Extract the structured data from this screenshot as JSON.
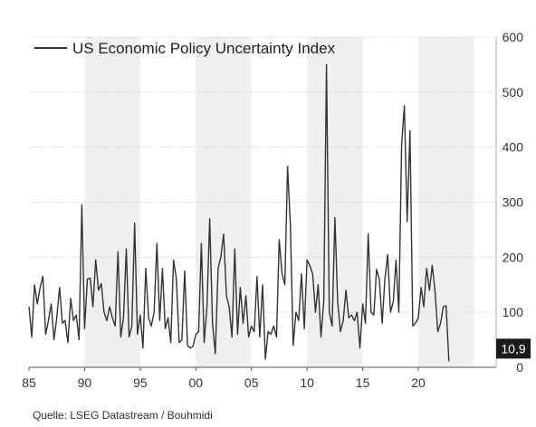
{
  "chart_data": {
    "type": "line",
    "legend": {
      "position": "top-left"
    },
    "series": [
      {
        "name": "US Economic Policy Uncertainty Index",
        "color": "#333333",
        "x_start": 1985.0,
        "x_step": 0.25,
        "values": [
          110,
          55,
          150,
          115,
          145,
          165,
          60,
          85,
          115,
          50,
          90,
          145,
          80,
          85,
          45,
          125,
          85,
          95,
          50,
          295,
          70,
          160,
          162,
          110,
          195,
          140,
          152,
          100,
          85,
          110,
          90,
          75,
          210,
          55,
          90,
          215,
          55,
          75,
          262,
          60,
          95,
          35,
          180,
          90,
          75,
          100,
          225,
          85,
          180,
          70,
          90,
          45,
          195,
          160,
          45,
          50,
          175,
          40,
          35,
          38,
          60,
          65,
          225,
          45,
          110,
          270,
          80,
          25,
          180,
          200,
          242,
          130,
          110,
          55,
          215,
          60,
          145,
          80,
          130,
          55,
          75,
          65,
          165,
          55,
          150,
          15,
          65,
          60,
          75,
          55,
          232,
          170,
          150,
          365,
          260,
          40,
          100,
          85,
          170,
          70,
          195,
          185,
          170,
          100,
          150,
          55,
          120,
          550,
          100,
          75,
          272,
          120,
          65,
          85,
          140,
          90,
          95,
          85,
          100,
          35,
          115,
          80,
          243,
          100,
          95,
          178,
          160,
          80,
          160,
          205,
          100,
          120,
          195,
          100,
          405,
          475,
          265,
          430,
          75,
          80,
          90,
          145,
          110,
          180,
          140,
          185,
          140,
          65,
          80,
          110,
          112,
          10.9
        ]
      }
    ],
    "y_axis": {
      "ylim": [
        0,
        600
      ],
      "ticks": [
        0,
        100,
        200,
        300,
        400,
        500,
        600
      ],
      "position": "right"
    },
    "x_axis": {
      "xlim": [
        1985,
        2027
      ],
      "ticks": [
        {
          "year": 1985,
          "label": "85"
        },
        {
          "year": 1990,
          "label": "90"
        },
        {
          "year": 1995,
          "label": "95"
        },
        {
          "year": 2000,
          "label": "00"
        },
        {
          "year": 2005,
          "label": "05"
        },
        {
          "year": 2010,
          "label": "10"
        },
        {
          "year": 2015,
          "label": "15"
        },
        {
          "year": 2020,
          "label": "20"
        }
      ]
    },
    "shaded_bands": [
      [
        1990,
        1995
      ],
      [
        2000,
        2005
      ],
      [
        2010,
        2015
      ],
      [
        2020,
        2025
      ]
    ],
    "last_value": {
      "value": 10.9,
      "label": "10,9"
    },
    "grid": true
  },
  "source_text": "Quelle: LSEG Datastream / Bouhmidi"
}
